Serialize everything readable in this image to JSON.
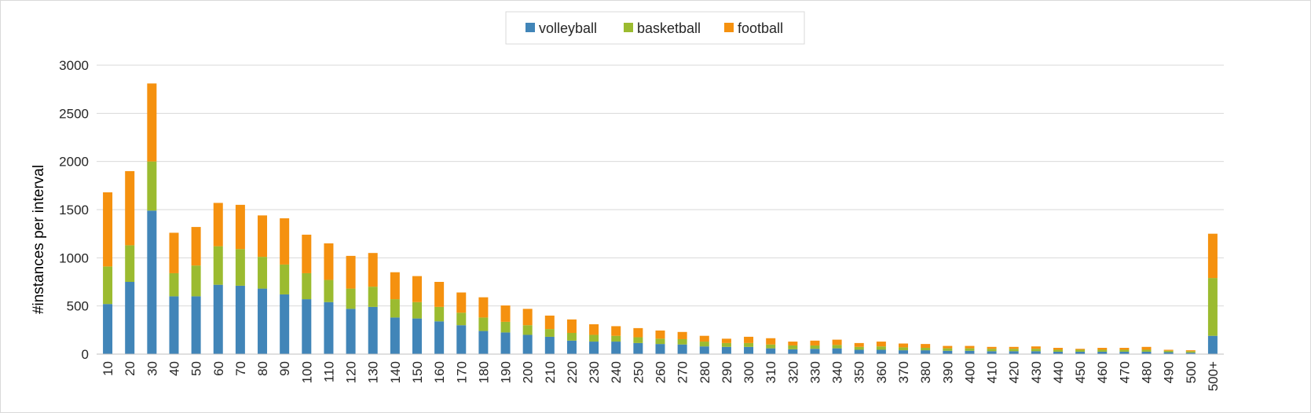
{
  "chart_data": {
    "type": "bar",
    "stacked": true,
    "title": "",
    "xlabel": "",
    "ylabel": "#instances per interval",
    "ylim": [
      0,
      3000
    ],
    "yticks": [
      "0",
      "500",
      "1000",
      "1500",
      "2000",
      "2500",
      "3000"
    ],
    "grid": true,
    "legend_position": "top-center",
    "categories": [
      "10",
      "20",
      "30",
      "40",
      "50",
      "60",
      "70",
      "80",
      "90",
      "100",
      "110",
      "120",
      "130",
      "140",
      "150",
      "160",
      "170",
      "180",
      "190",
      "200",
      "210",
      "220",
      "230",
      "240",
      "250",
      "260",
      "270",
      "280",
      "290",
      "300",
      "310",
      "320",
      "330",
      "340",
      "350",
      "360",
      "370",
      "380",
      "390",
      "400",
      "410",
      "420",
      "430",
      "440",
      "450",
      "460",
      "470",
      "480",
      "490",
      "500",
      "500+"
    ],
    "series": [
      {
        "name": "volleyball",
        "color": "#4185b8",
        "values": [
          520,
          750,
          1490,
          600,
          600,
          720,
          710,
          680,
          620,
          570,
          540,
          470,
          490,
          380,
          370,
          340,
          300,
          240,
          225,
          200,
          180,
          140,
          130,
          130,
          115,
          105,
          100,
          80,
          75,
          75,
          60,
          50,
          55,
          60,
          45,
          45,
          40,
          40,
          35,
          35,
          30,
          30,
          30,
          25,
          25,
          25,
          25,
          25,
          20,
          15,
          190
        ]
      },
      {
        "name": "basketball",
        "color": "#9bbb30",
        "values": [
          390,
          380,
          510,
          240,
          320,
          400,
          380,
          330,
          310,
          270,
          230,
          210,
          210,
          190,
          170,
          150,
          130,
          140,
          110,
          100,
          80,
          80,
          70,
          60,
          60,
          55,
          55,
          50,
          40,
          40,
          40,
          40,
          35,
          35,
          30,
          35,
          30,
          25,
          25,
          25,
          25,
          25,
          25,
          20,
          20,
          20,
          20,
          20,
          15,
          15,
          600
        ]
      },
      {
        "name": "football",
        "color": "#f5910f",
        "values": [
          770,
          770,
          810,
          420,
          400,
          450,
          460,
          430,
          480,
          400,
          380,
          340,
          350,
          280,
          270,
          260,
          210,
          210,
          170,
          170,
          140,
          140,
          110,
          100,
          95,
          85,
          75,
          60,
          45,
          65,
          65,
          40,
          50,
          55,
          40,
          50,
          40,
          40,
          25,
          25,
          20,
          20,
          25,
          20,
          10,
          20,
          20,
          30,
          10,
          10,
          460
        ]
      }
    ]
  }
}
